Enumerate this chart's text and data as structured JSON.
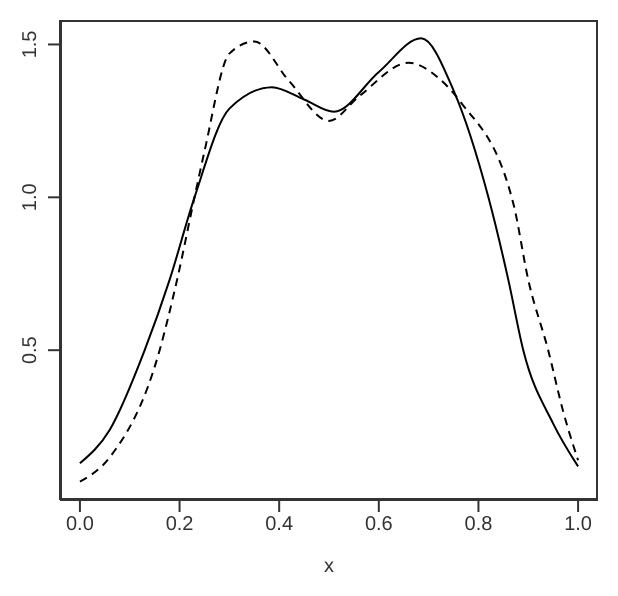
{
  "chart_data": {
    "type": "line",
    "xlabel": "x",
    "xlim": [
      -0.04,
      1.04
    ],
    "xticks": [
      {
        "value": 0,
        "label": "0.0"
      },
      0.2,
      0.4,
      0.6,
      0.8,
      {
        "value": 1,
        "label": "1.0"
      }
    ],
    "ylim": [
      0.01,
      1.58
    ],
    "yticks": [
      0.5,
      {
        "value": 1,
        "label": "1.0"
      },
      1.5
    ],
    "marker": "none",
    "series": [
      {
        "color": "#000000",
        "line_style": "solid",
        "x": [
          0,
          0.06,
          0.13,
          0.18,
          0.23,
          0.3,
          0.385,
          0.45,
          0.51,
          0.6,
          0.685,
          0.75,
          0.82,
          0.86,
          0.89,
          0.95,
          1.0
        ],
        "values": [
          0.13,
          0.24,
          0.5,
          0.73,
          1.0,
          1.29,
          1.36,
          1.32,
          1.28,
          1.41,
          1.52,
          1.35,
          1.0,
          0.73,
          0.5,
          0.26,
          0.12
        ]
      },
      {
        "color": "#000000",
        "line_style": "dashed",
        "x": [
          0,
          0.06,
          0.16,
          0.195,
          0.23,
          0.25,
          0.3,
          0.35,
          0.42,
          0.5,
          0.56,
          0.66,
          0.72,
          0.765,
          0.87,
          0.9,
          0.94,
          0.97,
          1.0
        ],
        "values": [
          0.07,
          0.15,
          0.5,
          0.73,
          1.0,
          1.15,
          1.47,
          1.51,
          1.38,
          1.25,
          1.33,
          1.44,
          1.39,
          1.31,
          0.98,
          0.73,
          0.5,
          0.3,
          0.14
        ]
      }
    ]
  }
}
